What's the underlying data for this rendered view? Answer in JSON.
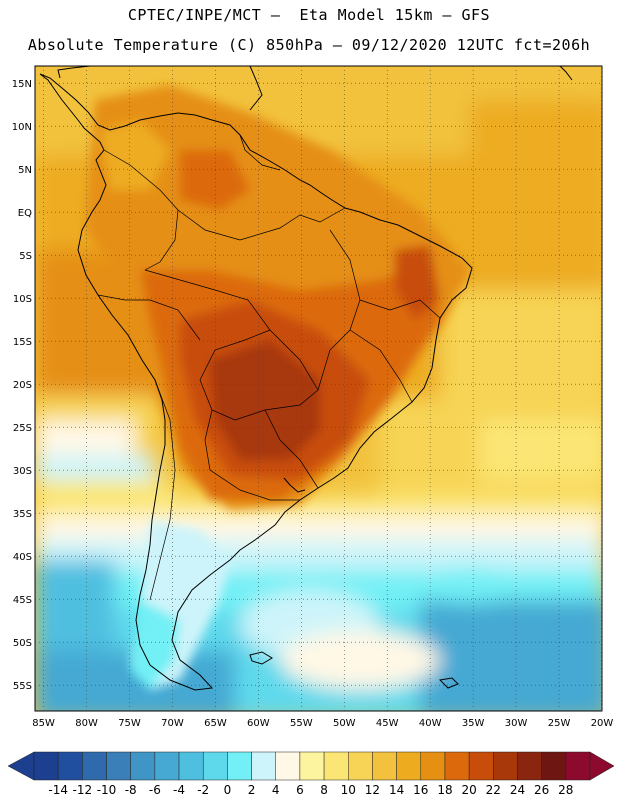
{
  "header": {
    "line1": "CPTEC/INPE/MCT –  Eta Model 15km – GFS",
    "line2": "Absolute Temperature (C) 850hPa – 09/12/2020 12UTC fct=206h"
  },
  "map": {
    "lat_labels": [
      "15N",
      "10N",
      "5N",
      "EQ",
      "5S",
      "10S",
      "15S",
      "20S",
      "25S",
      "30S",
      "35S",
      "40S",
      "45S",
      "50S",
      "55S"
    ],
    "lat_values": [
      15,
      10,
      5,
      0,
      -5,
      -10,
      -15,
      -20,
      -25,
      -30,
      -35,
      -40,
      -45,
      -50,
      -55
    ],
    "lon_labels": [
      "85W",
      "80W",
      "75W",
      "70W",
      "65W",
      "60W",
      "55W",
      "50W",
      "45W",
      "40W",
      "35W",
      "30W",
      "25W",
      "20W"
    ],
    "lon_values": [
      -85,
      -80,
      -75,
      -70,
      -65,
      -60,
      -55,
      -50,
      -45,
      -40,
      -35,
      -30,
      -25,
      -20
    ],
    "lat_range": [
      -58,
      17
    ],
    "lon_range": [
      -86,
      -20
    ]
  },
  "colorbar": {
    "labels": [
      "-14",
      "-12",
      "-10",
      "-8",
      "-6",
      "-4",
      "-2",
      "0",
      "2",
      "4",
      "6",
      "8",
      "10",
      "12",
      "14",
      "16",
      "18",
      "20",
      "22",
      "24",
      "26",
      "28"
    ],
    "colors": [
      "#1d3f8f",
      "#1f4f9e",
      "#2f6aac",
      "#3a7fb8",
      "#3f95c5",
      "#45a9d3",
      "#4fbfe0",
      "#5ed9ec",
      "#72f0f5",
      "#cdf4fa",
      "#fff8e6",
      "#fdf4a0",
      "#fbe675",
      "#f7d455",
      "#f2c23e",
      "#edac20",
      "#e58f13",
      "#dc6a0c",
      "#c84d0a",
      "#a8370a",
      "#8a2510",
      "#6e1712",
      "#8b0a2e"
    ]
  }
}
